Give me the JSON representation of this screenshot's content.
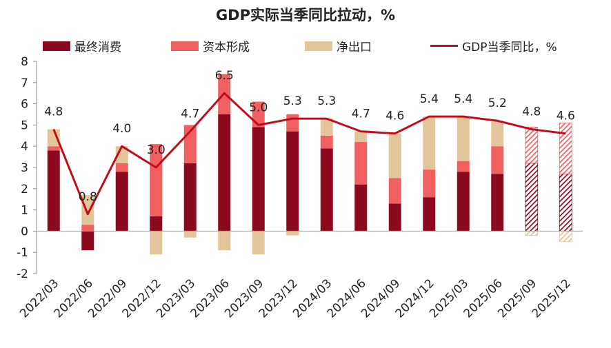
{
  "chart_data": {
    "type": "bar",
    "title": "GDP实际当季同比拉动，%",
    "categories": [
      "2022/03",
      "2022/06",
      "2022/09",
      "2022/12",
      "2023/03",
      "2023/06",
      "2023/09",
      "2023/12",
      "2024/03",
      "2024/06",
      "2024/09",
      "2024/12",
      "2025/03",
      "2025/06",
      "2025/09",
      "2025/12"
    ],
    "series": [
      {
        "name": "最终消费",
        "kind": "bar",
        "color": "#8b0a1f",
        "values": [
          3.8,
          -0.9,
          2.8,
          0.7,
          3.2,
          5.5,
          4.9,
          4.7,
          3.9,
          2.2,
          1.3,
          1.6,
          2.8,
          2.7,
          3.2,
          2.7
        ]
      },
      {
        "name": "资本形成",
        "kind": "bar",
        "color": "#f06060",
        "values": [
          0.2,
          0.3,
          0.4,
          3.4,
          1.8,
          1.9,
          1.2,
          0.8,
          0.6,
          2.0,
          1.2,
          1.3,
          0.5,
          1.3,
          1.7,
          2.4
        ]
      },
      {
        "name": "净出口",
        "kind": "bar",
        "color": "#e2c59a",
        "values": [
          0.8,
          1.4,
          0.8,
          -1.1,
          -0.3,
          -0.9,
          -1.1,
          -0.2,
          0.8,
          0.5,
          2.1,
          2.5,
          2.1,
          1.2,
          -0.2,
          -0.5
        ]
      },
      {
        "name": "GDP当季同比，%",
        "kind": "line",
        "color": "#c00d1e",
        "values": [
          4.8,
          0.8,
          4.0,
          3.0,
          4.7,
          6.5,
          5.0,
          5.3,
          5.3,
          4.7,
          4.6,
          5.4,
          5.4,
          5.2,
          4.8,
          4.6
        ]
      }
    ],
    "line_labels": [
      "4.8",
      "0.8",
      "4.0",
      "3.0",
      "4.7",
      "6.5",
      "5.0",
      "5.3",
      "5.3",
      "4.7",
      "4.6",
      "5.4",
      "5.4",
      "5.2",
      "4.8",
      "4.6"
    ],
    "hatched_categories": [
      "2025/09",
      "2025/12"
    ],
    "yticks": [
      "8",
      "7",
      "6",
      "5",
      "4",
      "3",
      "2",
      "1",
      "0",
      "-1",
      "-2"
    ],
    "ylim": [
      -2,
      8
    ],
    "legend_position": "top",
    "grid": false
  }
}
